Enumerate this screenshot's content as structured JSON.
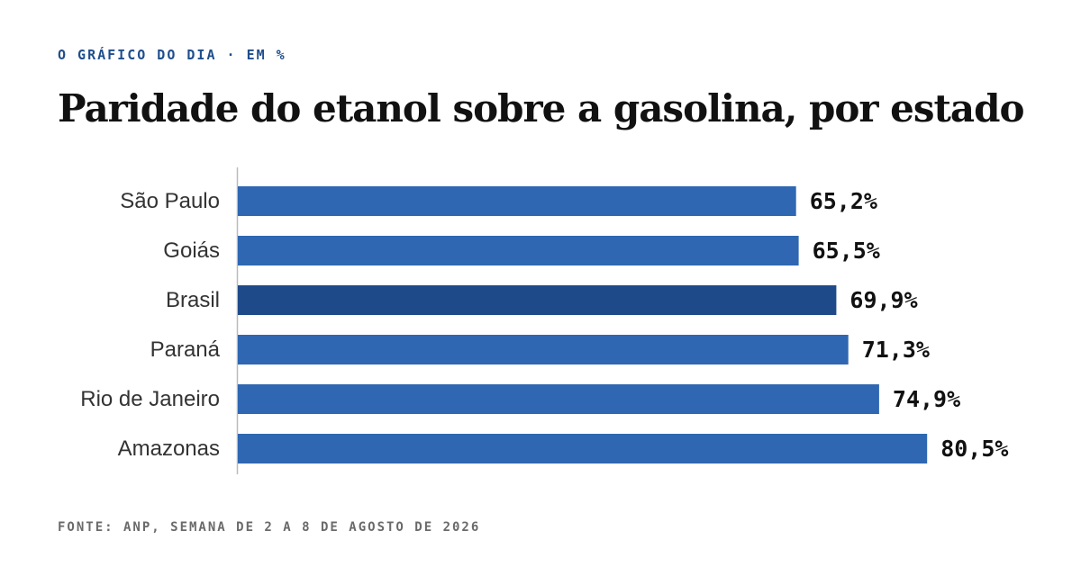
{
  "header": {
    "kicker": "O GRÁFICO DO DIA · EM %",
    "title": "Paridade do etanol sobre a gasolina, por estado"
  },
  "footer": {
    "source": "FONTE: ANP, SEMANA DE 2 A 8 DE AGOSTO DE 2026"
  },
  "colors": {
    "bar": "#2f67b2",
    "highlight": "#1f4a8a",
    "axis": "#bbbbbb"
  },
  "chart_data": {
    "type": "bar",
    "orientation": "horizontal",
    "categories": [
      "São Paulo",
      "Goiás",
      "Brasil",
      "Paraná",
      "Rio de Janeiro",
      "Amazonas"
    ],
    "values": [
      65.2,
      65.5,
      69.9,
      71.3,
      74.9,
      80.5
    ],
    "value_labels": [
      "65,2%",
      "65,5%",
      "69,9%",
      "71,3%",
      "74,9%",
      "80,5%"
    ],
    "highlight_category": "Brasil",
    "xlim": [
      0,
      100
    ],
    "grid": false,
    "legend": "none"
  }
}
